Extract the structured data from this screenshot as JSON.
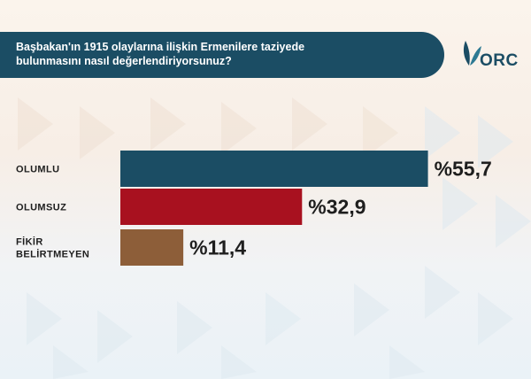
{
  "header": {
    "title": "Başbakan'ın 1915 olaylarına ilişkin Ermenilere taziyede bulunmasını nasıl değerlendiriyorsunuz?"
  },
  "logo": {
    "text": "ORC",
    "icon": "leaf-icon"
  },
  "colors": {
    "header": "#1b4d64",
    "olumlu": "#1b4d64",
    "olumsuz": "#a8111f",
    "fikir_belirtmeyen": "#8d5e39"
  },
  "chart_data": {
    "type": "bar",
    "orientation": "horizontal",
    "categories": [
      [
        "OLUMLU"
      ],
      [
        "OLUMSUZ"
      ],
      [
        "FİKİR",
        "BELİRTMEYEN"
      ]
    ],
    "values": [
      55.7,
      32.9,
      11.4
    ],
    "value_labels": [
      "%55,7",
      "%32,9",
      "%11,4"
    ],
    "colors": [
      "#1b4d64",
      "#a8111f",
      "#8d5e39"
    ],
    "xlim": [
      0,
      100
    ],
    "grid": false,
    "legend": "none"
  }
}
